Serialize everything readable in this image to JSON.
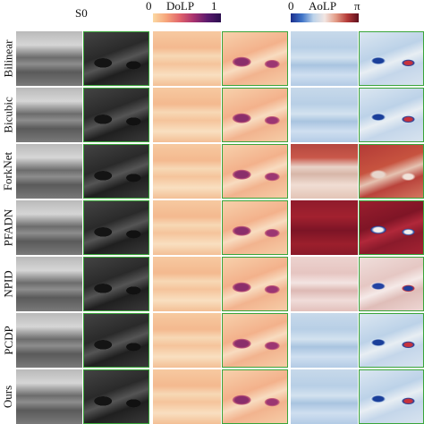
{
  "columns": {
    "s0": {
      "label": "S0"
    },
    "dolp": {
      "label": "DoLP",
      "min": "0",
      "max": "1"
    },
    "aolp": {
      "label": "AoLP",
      "min": "0",
      "max": "π"
    }
  },
  "rows": [
    {
      "label": "Bilinear",
      "aolp_style": "blue"
    },
    {
      "label": "Bicubic",
      "aolp_style": "blue"
    },
    {
      "label": "ForkNet",
      "aolp_style": "red"
    },
    {
      "label": "PFADN",
      "aolp_style": "dark"
    },
    {
      "label": "NPID",
      "aolp_style": "pink"
    },
    {
      "label": "PCDP",
      "aolp_style": "blue"
    },
    {
      "label": "Ours",
      "aolp_style": "blue"
    }
  ],
  "colorbars": {
    "dolp": [
      "#fbd9a3",
      "#f6a47a",
      "#e0636b",
      "#a8326f",
      "#5a1a6e",
      "#2a0f4e"
    ],
    "aolp": [
      "#1b2e8c",
      "#3f74c8",
      "#bcd3ea",
      "#f2e6e2",
      "#e39b86",
      "#b43a38",
      "#5e0f1e"
    ]
  }
}
